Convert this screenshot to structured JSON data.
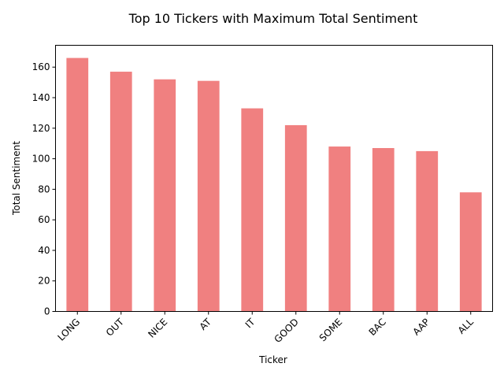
{
  "chart_data": {
    "type": "bar",
    "title": "Top 10 Tickers with Maximum Total Sentiment",
    "xlabel": "Ticker",
    "ylabel": "Total Sentiment",
    "categories": [
      "LONG",
      "OUT",
      "NICE",
      "AT",
      "IT",
      "GOOD",
      "SOME",
      "BAC",
      "AAP",
      "ALL"
    ],
    "values": [
      166,
      157,
      152,
      151,
      133,
      122,
      108,
      107,
      105,
      78
    ],
    "yticks": [
      0,
      20,
      40,
      60,
      80,
      100,
      120,
      140,
      160
    ],
    "ylim": [
      0,
      174.3
    ],
    "bar_color": "#f08080",
    "grid": false,
    "legend": "none",
    "xtick_rotation_deg": 45
  }
}
